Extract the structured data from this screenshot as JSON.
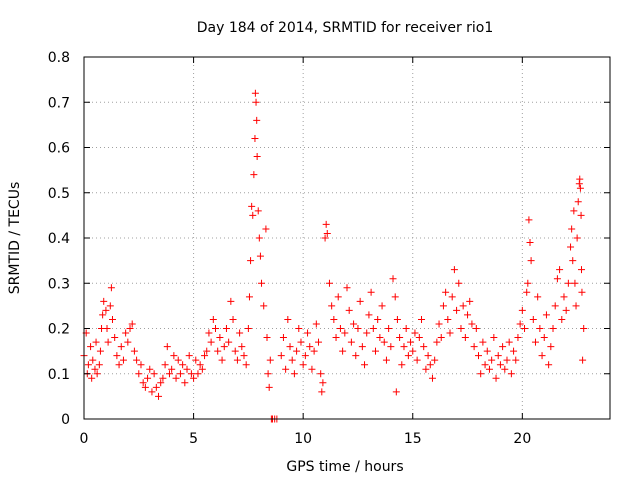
{
  "chart_data": {
    "type": "scatter",
    "title": "Day 184 of 2014, SRMTID for receiver rio1",
    "xlabel": "GPS time / hours",
    "ylabel": "SRMTID / TECUs",
    "xlim": [
      0,
      24
    ],
    "ylim": [
      0,
      0.8
    ],
    "xticks": [
      0,
      5,
      10,
      15,
      20
    ],
    "xtick_labels": [
      "0",
      "5",
      "10",
      "15",
      "20"
    ],
    "yticks": [
      0,
      0.1,
      0.2,
      0.3,
      0.4,
      0.5,
      0.6,
      0.7,
      0.8
    ],
    "ytick_labels": [
      "0",
      "0.1",
      "0.2",
      "0.3",
      "0.4",
      "0.5",
      "0.6",
      "0.7",
      "0.8"
    ],
    "grid": true,
    "marker": "+",
    "color": "#ff0000",
    "series": [
      {
        "name": "SRMTID",
        "points": [
          [
            0.0,
            0.14
          ],
          [
            0.1,
            0.19
          ],
          [
            0.15,
            0.1
          ],
          [
            0.2,
            0.12
          ],
          [
            0.3,
            0.16
          ],
          [
            0.35,
            0.09
          ],
          [
            0.4,
            0.13
          ],
          [
            0.5,
            0.11
          ],
          [
            0.55,
            0.17
          ],
          [
            0.6,
            0.1
          ],
          [
            0.7,
            0.12
          ],
          [
            0.75,
            0.15
          ],
          [
            0.8,
            0.2
          ],
          [
            0.85,
            0.23
          ],
          [
            0.9,
            0.26
          ],
          [
            1.0,
            0.24
          ],
          [
            1.05,
            0.2
          ],
          [
            1.1,
            0.17
          ],
          [
            1.2,
            0.25
          ],
          [
            1.25,
            0.29
          ],
          [
            1.3,
            0.22
          ],
          [
            1.4,
            0.18
          ],
          [
            1.5,
            0.14
          ],
          [
            1.6,
            0.12
          ],
          [
            1.7,
            0.16
          ],
          [
            1.8,
            0.13
          ],
          [
            1.9,
            0.19
          ],
          [
            2.0,
            0.17
          ],
          [
            2.1,
            0.2
          ],
          [
            2.2,
            0.21
          ],
          [
            2.3,
            0.15
          ],
          [
            2.4,
            0.13
          ],
          [
            2.5,
            0.1
          ],
          [
            2.6,
            0.12
          ],
          [
            2.7,
            0.08
          ],
          [
            2.8,
            0.07
          ],
          [
            2.9,
            0.09
          ],
          [
            3.0,
            0.11
          ],
          [
            3.1,
            0.06
          ],
          [
            3.2,
            0.1
          ],
          [
            3.3,
            0.07
          ],
          [
            3.4,
            0.05
          ],
          [
            3.5,
            0.08
          ],
          [
            3.6,
            0.09
          ],
          [
            3.7,
            0.12
          ],
          [
            3.8,
            0.16
          ],
          [
            3.9,
            0.1
          ],
          [
            4.0,
            0.11
          ],
          [
            4.1,
            0.14
          ],
          [
            4.2,
            0.09
          ],
          [
            4.3,
            0.13
          ],
          [
            4.4,
            0.1
          ],
          [
            4.5,
            0.12
          ],
          [
            4.6,
            0.08
          ],
          [
            4.7,
            0.11
          ],
          [
            4.8,
            0.14
          ],
          [
            4.9,
            0.1
          ],
          [
            5.0,
            0.09
          ],
          [
            5.1,
            0.13
          ],
          [
            5.2,
            0.1
          ],
          [
            5.3,
            0.12
          ],
          [
            5.4,
            0.11
          ],
          [
            5.5,
            0.14
          ],
          [
            5.6,
            0.15
          ],
          [
            5.7,
            0.19
          ],
          [
            5.8,
            0.17
          ],
          [
            5.9,
            0.22
          ],
          [
            6.0,
            0.2
          ],
          [
            6.1,
            0.15
          ],
          [
            6.2,
            0.18
          ],
          [
            6.3,
            0.13
          ],
          [
            6.4,
            0.16
          ],
          [
            6.5,
            0.2
          ],
          [
            6.6,
            0.17
          ],
          [
            6.7,
            0.26
          ],
          [
            6.8,
            0.22
          ],
          [
            6.9,
            0.15
          ],
          [
            7.0,
            0.13
          ],
          [
            7.1,
            0.19
          ],
          [
            7.2,
            0.16
          ],
          [
            7.3,
            0.14
          ],
          [
            7.4,
            0.12
          ],
          [
            7.5,
            0.2
          ],
          [
            7.55,
            0.27
          ],
          [
            7.6,
            0.35
          ],
          [
            7.65,
            0.47
          ],
          [
            7.7,
            0.45
          ],
          [
            7.75,
            0.54
          ],
          [
            7.8,
            0.62
          ],
          [
            7.82,
            0.72
          ],
          [
            7.85,
            0.7
          ],
          [
            7.88,
            0.66
          ],
          [
            7.9,
            0.58
          ],
          [
            7.95,
            0.46
          ],
          [
            8.0,
            0.4
          ],
          [
            8.05,
            0.36
          ],
          [
            8.1,
            0.3
          ],
          [
            8.2,
            0.25
          ],
          [
            8.3,
            0.42
          ],
          [
            8.35,
            0.18
          ],
          [
            8.4,
            0.1
          ],
          [
            8.45,
            0.07
          ],
          [
            8.5,
            0.13
          ],
          [
            8.55,
            0.0
          ],
          [
            8.6,
            0.0
          ],
          [
            8.7,
            0.0
          ],
          [
            8.8,
            0.0
          ],
          [
            9.0,
            0.14
          ],
          [
            9.1,
            0.18
          ],
          [
            9.2,
            0.11
          ],
          [
            9.3,
            0.22
          ],
          [
            9.4,
            0.16
          ],
          [
            9.5,
            0.13
          ],
          [
            9.6,
            0.1
          ],
          [
            9.7,
            0.15
          ],
          [
            9.8,
            0.2
          ],
          [
            9.9,
            0.17
          ],
          [
            10.0,
            0.12
          ],
          [
            10.1,
            0.14
          ],
          [
            10.2,
            0.19
          ],
          [
            10.3,
            0.16
          ],
          [
            10.4,
            0.11
          ],
          [
            10.5,
            0.15
          ],
          [
            10.6,
            0.21
          ],
          [
            10.7,
            0.17
          ],
          [
            10.8,
            0.1
          ],
          [
            10.85,
            0.06
          ],
          [
            10.9,
            0.08
          ],
          [
            11.0,
            0.4
          ],
          [
            11.05,
            0.43
          ],
          [
            11.1,
            0.41
          ],
          [
            11.2,
            0.3
          ],
          [
            11.3,
            0.25
          ],
          [
            11.4,
            0.22
          ],
          [
            11.5,
            0.18
          ],
          [
            11.6,
            0.27
          ],
          [
            11.7,
            0.2
          ],
          [
            11.8,
            0.15
          ],
          [
            11.9,
            0.19
          ],
          [
            12.0,
            0.29
          ],
          [
            12.1,
            0.24
          ],
          [
            12.2,
            0.17
          ],
          [
            12.3,
            0.21
          ],
          [
            12.4,
            0.14
          ],
          [
            12.5,
            0.2
          ],
          [
            12.6,
            0.26
          ],
          [
            12.7,
            0.16
          ],
          [
            12.8,
            0.12
          ],
          [
            12.9,
            0.19
          ],
          [
            13.0,
            0.23
          ],
          [
            13.1,
            0.28
          ],
          [
            13.2,
            0.2
          ],
          [
            13.3,
            0.15
          ],
          [
            13.4,
            0.22
          ],
          [
            13.5,
            0.18
          ],
          [
            13.6,
            0.25
          ],
          [
            13.7,
            0.17
          ],
          [
            13.8,
            0.13
          ],
          [
            13.9,
            0.2
          ],
          [
            14.0,
            0.16
          ],
          [
            14.1,
            0.31
          ],
          [
            14.2,
            0.27
          ],
          [
            14.25,
            0.06
          ],
          [
            14.3,
            0.22
          ],
          [
            14.4,
            0.18
          ],
          [
            14.5,
            0.12
          ],
          [
            14.6,
            0.16
          ],
          [
            14.7,
            0.2
          ],
          [
            14.8,
            0.14
          ],
          [
            14.9,
            0.17
          ],
          [
            15.0,
            0.15
          ],
          [
            15.1,
            0.19
          ],
          [
            15.2,
            0.13
          ],
          [
            15.3,
            0.18
          ],
          [
            15.4,
            0.22
          ],
          [
            15.5,
            0.16
          ],
          [
            15.6,
            0.11
          ],
          [
            15.7,
            0.14
          ],
          [
            15.8,
            0.12
          ],
          [
            15.9,
            0.09
          ],
          [
            16.0,
            0.13
          ],
          [
            16.1,
            0.17
          ],
          [
            16.2,
            0.21
          ],
          [
            16.3,
            0.18
          ],
          [
            16.4,
            0.25
          ],
          [
            16.5,
            0.28
          ],
          [
            16.6,
            0.22
          ],
          [
            16.7,
            0.19
          ],
          [
            16.8,
            0.27
          ],
          [
            16.9,
            0.33
          ],
          [
            17.0,
            0.24
          ],
          [
            17.1,
            0.3
          ],
          [
            17.2,
            0.2
          ],
          [
            17.3,
            0.25
          ],
          [
            17.4,
            0.18
          ],
          [
            17.5,
            0.23
          ],
          [
            17.6,
            0.26
          ],
          [
            17.7,
            0.21
          ],
          [
            17.8,
            0.16
          ],
          [
            17.9,
            0.2
          ],
          [
            18.0,
            0.14
          ],
          [
            18.1,
            0.1
          ],
          [
            18.2,
            0.17
          ],
          [
            18.3,
            0.12
          ],
          [
            18.4,
            0.15
          ],
          [
            18.5,
            0.11
          ],
          [
            18.6,
            0.13
          ],
          [
            18.7,
            0.18
          ],
          [
            18.8,
            0.09
          ],
          [
            18.9,
            0.14
          ],
          [
            19.0,
            0.12
          ],
          [
            19.1,
            0.16
          ],
          [
            19.2,
            0.11
          ],
          [
            19.3,
            0.13
          ],
          [
            19.4,
            0.17
          ],
          [
            19.5,
            0.1
          ],
          [
            19.6,
            0.15
          ],
          [
            19.7,
            0.13
          ],
          [
            19.8,
            0.18
          ],
          [
            19.9,
            0.21
          ],
          [
            20.0,
            0.24
          ],
          [
            20.1,
            0.2
          ],
          [
            20.2,
            0.28
          ],
          [
            20.25,
            0.3
          ],
          [
            20.3,
            0.44
          ],
          [
            20.35,
            0.39
          ],
          [
            20.4,
            0.35
          ],
          [
            20.5,
            0.22
          ],
          [
            20.6,
            0.17
          ],
          [
            20.7,
            0.27
          ],
          [
            20.8,
            0.2
          ],
          [
            20.9,
            0.14
          ],
          [
            21.0,
            0.18
          ],
          [
            21.1,
            0.23
          ],
          [
            21.2,
            0.12
          ],
          [
            21.3,
            0.16
          ],
          [
            21.4,
            0.2
          ],
          [
            21.5,
            0.25
          ],
          [
            21.6,
            0.31
          ],
          [
            21.7,
            0.33
          ],
          [
            21.8,
            0.22
          ],
          [
            21.9,
            0.27
          ],
          [
            22.0,
            0.24
          ],
          [
            22.1,
            0.3
          ],
          [
            22.2,
            0.38
          ],
          [
            22.25,
            0.42
          ],
          [
            22.3,
            0.35
          ],
          [
            22.35,
            0.46
          ],
          [
            22.4,
            0.3
          ],
          [
            22.45,
            0.25
          ],
          [
            22.5,
            0.4
          ],
          [
            22.55,
            0.48
          ],
          [
            22.6,
            0.52
          ],
          [
            22.62,
            0.53
          ],
          [
            22.65,
            0.51
          ],
          [
            22.68,
            0.45
          ],
          [
            22.7,
            0.33
          ],
          [
            22.72,
            0.28
          ],
          [
            22.75,
            0.13
          ],
          [
            22.8,
            0.2
          ]
        ]
      }
    ]
  }
}
